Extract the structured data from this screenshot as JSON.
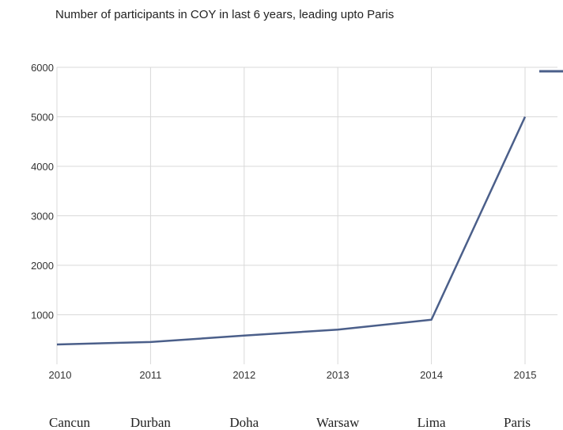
{
  "chart_data": {
    "type": "line",
    "title": "Number of participants in COY in last 6 years, leading upto Paris",
    "x": [
      "2010",
      "2011",
      "2012",
      "2013",
      "2014",
      "2015"
    ],
    "categories": [
      "Cancun",
      "Durban",
      "Doha",
      "Warsaw",
      "Lima",
      "Paris"
    ],
    "series": [
      {
        "values": [
          400,
          450,
          580,
          700,
          900,
          5000
        ]
      }
    ],
    "ylim": [
      0,
      6000
    ],
    "yticks": [
      "1000",
      "2000",
      "3000",
      "4000",
      "5000",
      "6000"
    ],
    "xlabel": "",
    "ylabel": "",
    "grid": true,
    "legend": "right (cropped)",
    "colors": {
      "line": "#4b5f8a",
      "grid": "#d9d9d9"
    }
  }
}
